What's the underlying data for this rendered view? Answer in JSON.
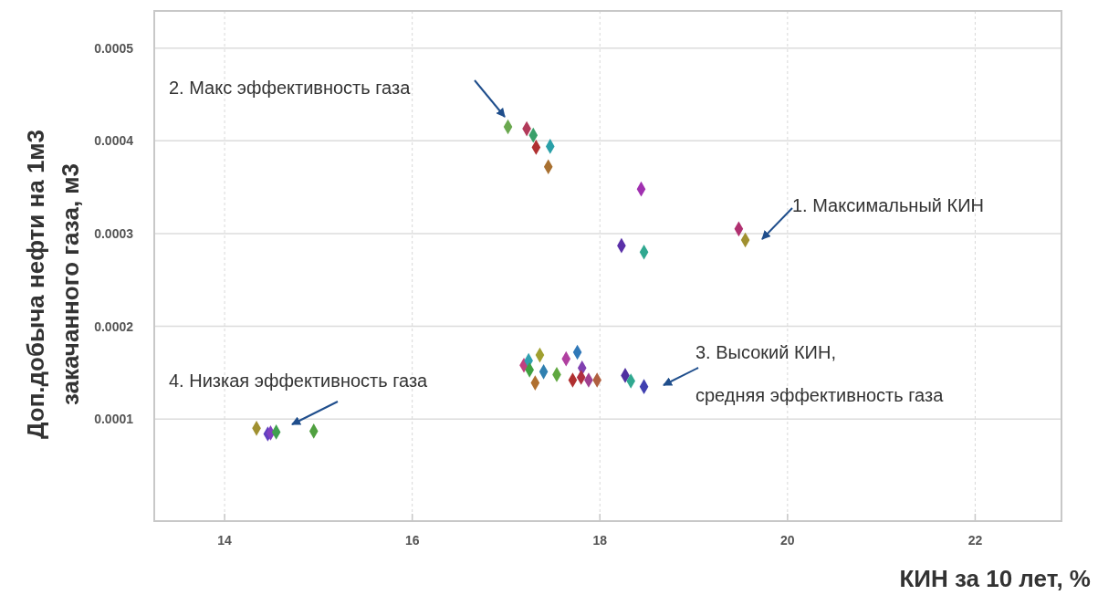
{
  "chart_data": {
    "type": "scatter",
    "xlabel": "КИН за 10 лет, %",
    "ylabel": "Доп.добыча нефти на 1м3\nзакачанного газа, м3",
    "xlim": [
      13.25,
      22.92
    ],
    "xticks": [
      14,
      16,
      18,
      20,
      22
    ],
    "ylim": [
      -1e-05,
      0.00054
    ],
    "yticks": [
      0.0001,
      0.0002,
      0.0003,
      0.0004,
      0.0005
    ],
    "grid": true,
    "marker": "diamond",
    "series": [
      {
        "x": [
          17.02,
          17.22,
          17.29,
          17.32,
          17.47,
          17.45,
          18.44,
          18.23,
          18.47,
          19.48,
          19.55,
          17.19,
          17.24,
          17.25,
          17.36,
          17.4,
          17.54,
          17.31,
          17.64,
          17.76,
          17.81,
          17.71,
          17.8,
          17.88,
          17.97,
          18.27,
          18.33,
          18.47,
          14.34,
          14.46,
          14.49,
          14.55,
          14.95
        ],
        "values": [
          0.000415,
          0.000413,
          0.000406,
          0.000393,
          0.000394,
          0.000372,
          0.000348,
          0.000287,
          0.00028,
          0.000305,
          0.000293,
          0.000158,
          0.000163,
          0.000153,
          0.000169,
          0.000151,
          0.000148,
          0.000139,
          0.000165,
          0.000172,
          0.000155,
          0.000142,
          0.000145,
          0.000142,
          0.000142,
          0.000147,
          0.000141,
          0.000135,
          9e-05,
          8.4e-05,
          8.5e-05,
          8.6e-05,
          8.7e-05
        ],
        "colors": [
          "#6aa84f",
          "#b23a5a",
          "#3aa06a",
          "#b03030",
          "#2aa0a8",
          "#a87030",
          "#a030b0",
          "#5a30a8",
          "#30a890",
          "#b03070",
          "#a09030",
          "#c04080",
          "#30a0b0",
          "#40a040",
          "#a0a030",
          "#3080b0",
          "#60a840",
          "#b07030",
          "#b040a0",
          "#3078b8",
          "#8040b0",
          "#b03030",
          "#b03040",
          "#a04090",
          "#b06040",
          "#5030a0",
          "#30a890",
          "#4040b0",
          "#a09030",
          "#6040c0",
          "#8040c0",
          "#40a050",
          "#50a040"
        ]
      }
    ],
    "annotations": [
      "1. Максимальный КИН",
      "2. Макс эффективность газа",
      "3. Высокий КИН,",
      "средняя эффективность газа",
      "4. Низкая эффективность газа"
    ]
  }
}
